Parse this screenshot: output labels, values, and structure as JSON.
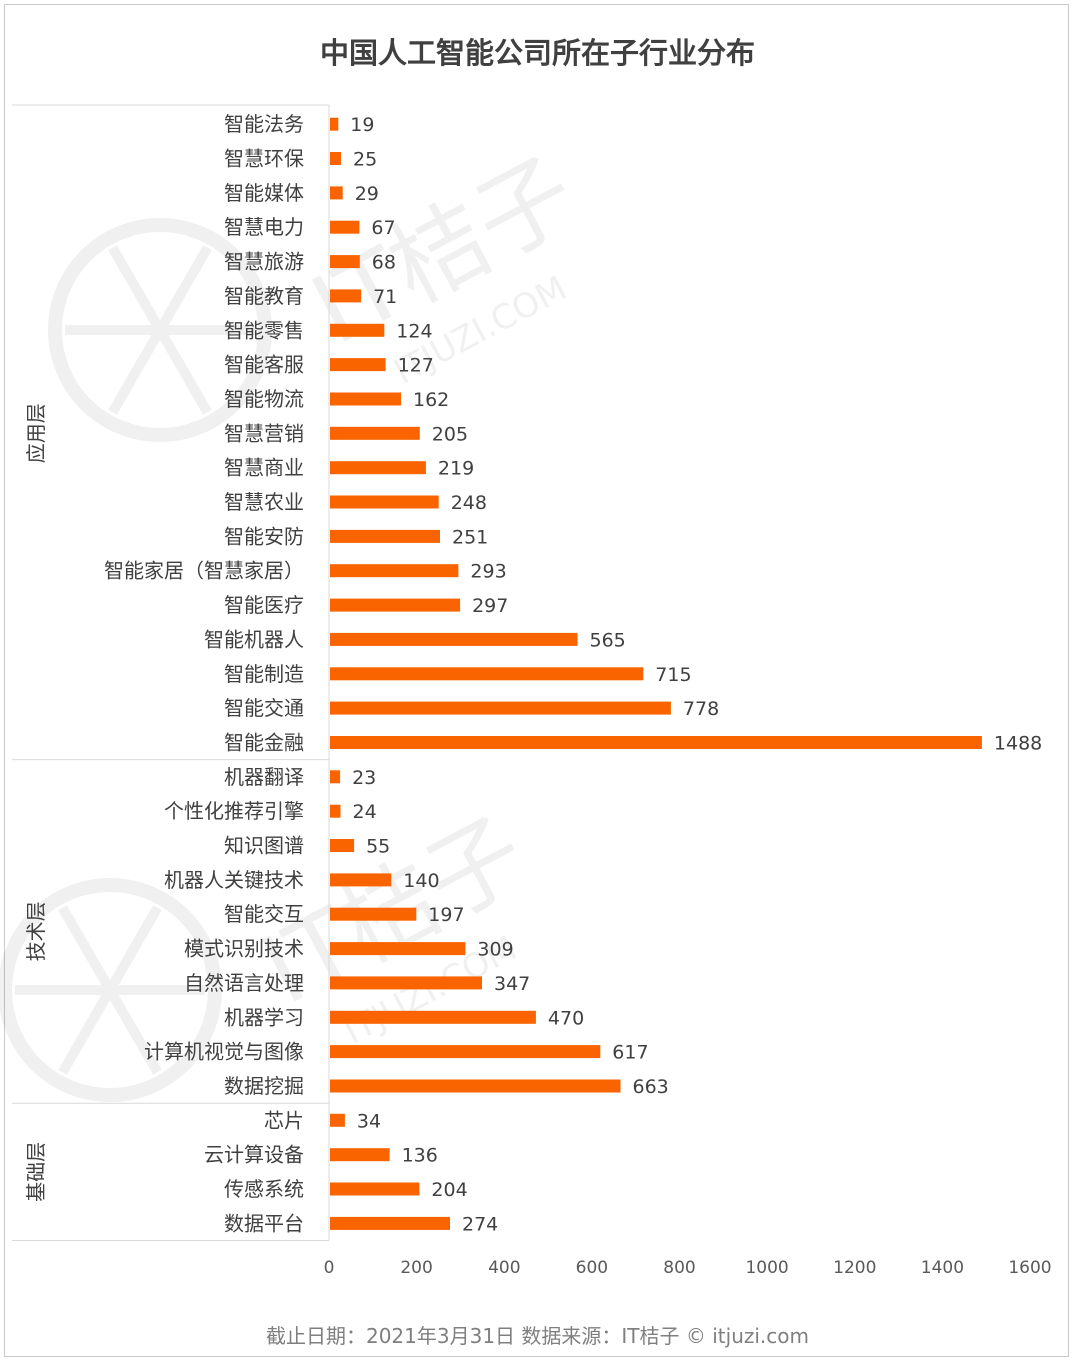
{
  "chart_data": {
    "type": "bar",
    "orientation": "horizontal",
    "title": "中国人工智能公司所在子行业分布",
    "xlim": [
      0,
      1600
    ],
    "xticks": [
      0,
      200,
      400,
      600,
      800,
      1000,
      1200,
      1400,
      1600
    ],
    "bar_color": "#fa6400",
    "groups": [
      {
        "name": "应用层",
        "categories": [
          "智能法务",
          "智慧环保",
          "智能媒体",
          "智慧电力",
          "智慧旅游",
          "智能教育",
          "智能零售",
          "智能客服",
          "智能物流",
          "智慧营销",
          "智慧商业",
          "智慧农业",
          "智能安防",
          "智能家居（智慧家居）",
          "智能医疗",
          "智能机器人",
          "智能制造",
          "智能交通",
          "智能金融"
        ],
        "values": [
          19,
          25,
          29,
          67,
          68,
          71,
          124,
          127,
          162,
          205,
          219,
          248,
          251,
          293,
          297,
          565,
          715,
          778,
          1488
        ]
      },
      {
        "name": "技术层",
        "categories": [
          "机器翻译",
          "个性化推荐引擎",
          "知识图谱",
          "机器人关键技术",
          "智能交互",
          "模式识别技术",
          "自然语言处理",
          "机器学习",
          "计算机视觉与图像",
          "数据挖掘"
        ],
        "values": [
          23,
          24,
          55,
          140,
          197,
          309,
          347,
          470,
          617,
          663
        ]
      },
      {
        "name": "基础层",
        "categories": [
          "芯片",
          "云计算设备",
          "传感系统",
          "数据平台"
        ],
        "values": [
          34,
          136,
          204,
          274
        ]
      }
    ]
  },
  "footer": "截止日期：2021年3月31日     数据来源：IT桔子 © itjuzi.com",
  "watermark": {
    "brand": "IT桔子",
    "url": "ITJUZI.COM"
  }
}
